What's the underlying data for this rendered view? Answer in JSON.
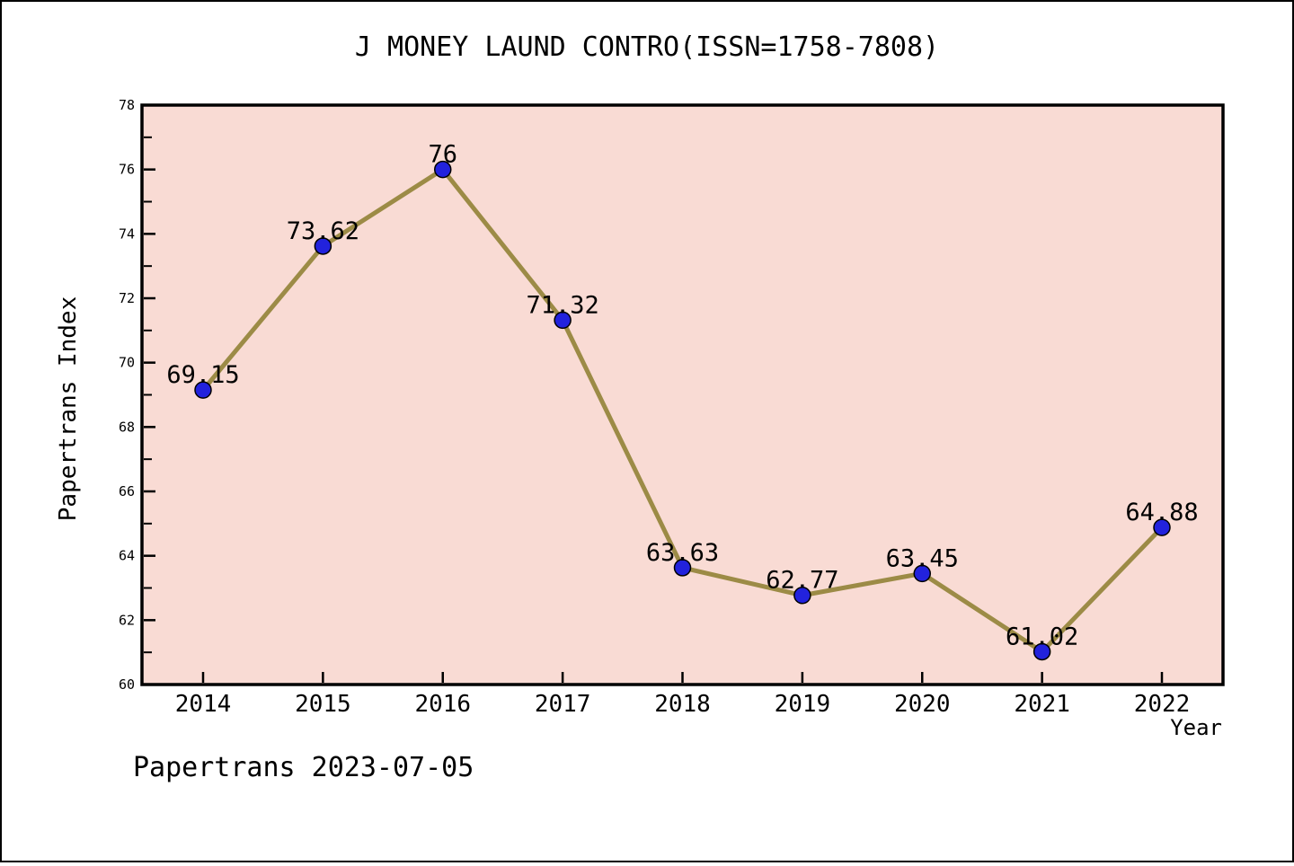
{
  "chart_data": {
    "type": "line",
    "title": "J MONEY LAUND CONTRO(ISSN=1758-7808)",
    "xlabel": "Year",
    "ylabel": "Papertrans Index",
    "x": [
      2014,
      2015,
      2016,
      2017,
      2018,
      2019,
      2020,
      2021,
      2022
    ],
    "values": [
      69.15,
      73.62,
      76,
      71.32,
      63.63,
      62.77,
      63.45,
      61.02,
      64.88
    ],
    "point_labels": [
      "69.15",
      "73.62",
      "76",
      "71.32",
      "63.63",
      "62.77",
      "63.45",
      "61.02",
      "64.88"
    ],
    "ylim": [
      60,
      78
    ],
    "ytick_step": 2,
    "yminor_step": 1,
    "grid": false,
    "legend": null,
    "colors": {
      "plot_bg": "#f9dbd4",
      "line": "#9c8b46",
      "marker_fill": "#2222dd",
      "marker_edge": "#000000",
      "axis": "#000000",
      "text": "#000000",
      "page_bg": "#ffffff"
    }
  },
  "footer": {
    "watermark": "Papertrans 2023-07-05"
  }
}
